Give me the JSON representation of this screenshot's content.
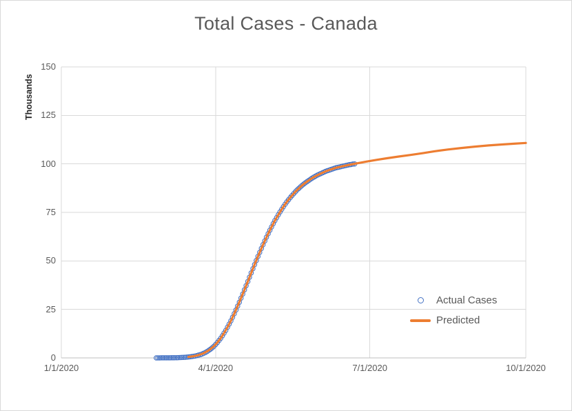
{
  "chart": {
    "title": "Total Cases - Canada",
    "y_axis_title": "Thousands",
    "legend": [
      {
        "label": "Actual Cases",
        "type": "marker",
        "color": "#4472C4"
      },
      {
        "label": "Predicted",
        "type": "line",
        "color": "#ED7D31"
      }
    ]
  },
  "chart_data": {
    "type": "line",
    "title": "Total Cases - Canada",
    "xlabel": "",
    "ylabel": "Thousands",
    "x_unit": "days since 1/1/2020",
    "xlim": [
      0,
      274
    ],
    "ylim": [
      0,
      150
    ],
    "grid": true,
    "legend_position": "inside-right",
    "x_ticks": [
      {
        "day": 0,
        "label": "1/1/2020"
      },
      {
        "day": 91,
        "label": "4/1/2020"
      },
      {
        "day": 182,
        "label": "7/1/2020"
      },
      {
        "day": 274,
        "label": "10/1/2020"
      }
    ],
    "y_ticks": [
      0,
      25,
      50,
      75,
      100,
      125,
      150
    ],
    "series": [
      {
        "name": "Actual Cases",
        "style": "scatter-hollow-circle",
        "color": "#4472C4",
        "points": [
          [
            56,
            0.01
          ],
          [
            57,
            0.01
          ],
          [
            58,
            0.01
          ],
          [
            59,
            0.02
          ],
          [
            60,
            0.02
          ],
          [
            61,
            0.03
          ],
          [
            62,
            0.03
          ],
          [
            63,
            0.04
          ],
          [
            64,
            0.05
          ],
          [
            65,
            0.06
          ],
          [
            66,
            0.08
          ],
          [
            67,
            0.1
          ],
          [
            68,
            0.12
          ],
          [
            69,
            0.15
          ],
          [
            70,
            0.18
          ],
          [
            71,
            0.22
          ],
          [
            72,
            0.27
          ],
          [
            73,
            0.33
          ],
          [
            74,
            0.4
          ],
          [
            75,
            0.48
          ],
          [
            76,
            0.58
          ],
          [
            77,
            0.7
          ],
          [
            78,
            0.85
          ],
          [
            79,
            1.0
          ],
          [
            80,
            1.2
          ],
          [
            81,
            1.45
          ],
          [
            82,
            1.7
          ],
          [
            83,
            2.0
          ],
          [
            84,
            2.4
          ],
          [
            85,
            2.8
          ],
          [
            86,
            3.3
          ],
          [
            87,
            3.9
          ],
          [
            88,
            4.5
          ],
          [
            89,
            5.2
          ],
          [
            90,
            6.0
          ],
          [
            91,
            6.9
          ],
          [
            92,
            7.9
          ],
          [
            93,
            9.0
          ],
          [
            94,
            10.1
          ],
          [
            95,
            11.4
          ],
          [
            96,
            12.8
          ],
          [
            97,
            14.2
          ],
          [
            98,
            15.8
          ],
          [
            99,
            17.4
          ],
          [
            100,
            19.1
          ],
          [
            101,
            20.9
          ],
          [
            102,
            22.8
          ],
          [
            103,
            24.7
          ],
          [
            104,
            26.7
          ],
          [
            105,
            28.7
          ],
          [
            106,
            30.8
          ],
          [
            107,
            32.9
          ],
          [
            108,
            35.1
          ],
          [
            109,
            37.2
          ],
          [
            110,
            39.4
          ],
          [
            111,
            41.6
          ],
          [
            112,
            43.8
          ],
          [
            113,
            46.0
          ],
          [
            114,
            48.1
          ],
          [
            115,
            50.2
          ],
          [
            116,
            52.3
          ],
          [
            117,
            54.4
          ],
          [
            118,
            56.4
          ],
          [
            119,
            58.4
          ],
          [
            120,
            60.3
          ],
          [
            121,
            62.2
          ],
          [
            122,
            64.0
          ],
          [
            123,
            65.8
          ],
          [
            124,
            67.5
          ],
          [
            125,
            69.2
          ],
          [
            126,
            70.8
          ],
          [
            127,
            72.3
          ],
          [
            128,
            73.8
          ],
          [
            129,
            75.2
          ],
          [
            130,
            76.6
          ],
          [
            131,
            77.9
          ],
          [
            132,
            79.2
          ],
          [
            133,
            80.4
          ],
          [
            134,
            81.5
          ],
          [
            135,
            82.6
          ],
          [
            136,
            83.6
          ],
          [
            137,
            84.6
          ],
          [
            138,
            85.6
          ],
          [
            139,
            86.5
          ],
          [
            140,
            87.3
          ],
          [
            141,
            88.1
          ],
          [
            142,
            88.9
          ],
          [
            143,
            89.6
          ],
          [
            144,
            90.3
          ],
          [
            145,
            90.9
          ],
          [
            146,
            91.5
          ],
          [
            147,
            92.1
          ],
          [
            148,
            92.7
          ],
          [
            149,
            93.2
          ],
          [
            150,
            93.7
          ],
          [
            151,
            94.2
          ],
          [
            152,
            94.6
          ],
          [
            153,
            95.0
          ],
          [
            154,
            95.4
          ],
          [
            155,
            95.8
          ],
          [
            156,
            96.2
          ],
          [
            157,
            96.5
          ],
          [
            158,
            96.8
          ],
          [
            159,
            97.1
          ],
          [
            160,
            97.4
          ],
          [
            161,
            97.7
          ],
          [
            162,
            98.0
          ],
          [
            163,
            98.2
          ],
          [
            164,
            98.4
          ],
          [
            165,
            98.6
          ],
          [
            166,
            98.8
          ],
          [
            167,
            99.0
          ],
          [
            168,
            99.2
          ],
          [
            169,
            99.4
          ],
          [
            170,
            99.6
          ],
          [
            171,
            99.7
          ],
          [
            172,
            99.9
          ],
          [
            173,
            100.0
          ]
        ]
      },
      {
        "name": "Predicted",
        "style": "line",
        "color": "#ED7D31",
        "width": 3.2,
        "points": [
          [
            75,
            0.48
          ],
          [
            78,
            0.85
          ],
          [
            81,
            1.45
          ],
          [
            84,
            2.4
          ],
          [
            87,
            3.9
          ],
          [
            90,
            6.0
          ],
          [
            92,
            7.9
          ],
          [
            94,
            10.1
          ],
          [
            96,
            12.8
          ],
          [
            98,
            15.8
          ],
          [
            100,
            19.1
          ],
          [
            102,
            22.8
          ],
          [
            104,
            26.7
          ],
          [
            106,
            30.8
          ],
          [
            108,
            35.1
          ],
          [
            110,
            39.4
          ],
          [
            112,
            43.8
          ],
          [
            114,
            48.1
          ],
          [
            116,
            52.3
          ],
          [
            118,
            56.4
          ],
          [
            120,
            60.3
          ],
          [
            122,
            64.0
          ],
          [
            124,
            67.5
          ],
          [
            126,
            70.8
          ],
          [
            128,
            73.8
          ],
          [
            130,
            76.6
          ],
          [
            132,
            79.2
          ],
          [
            134,
            81.5
          ],
          [
            136,
            83.6
          ],
          [
            138,
            85.6
          ],
          [
            140,
            87.3
          ],
          [
            142,
            88.9
          ],
          [
            144,
            90.3
          ],
          [
            146,
            91.5
          ],
          [
            148,
            92.7
          ],
          [
            150,
            93.7
          ],
          [
            153,
            95.0
          ],
          [
            156,
            96.2
          ],
          [
            159,
            97.1
          ],
          [
            162,
            98.0
          ],
          [
            165,
            98.6
          ],
          [
            168,
            99.2
          ],
          [
            171,
            99.7
          ],
          [
            174,
            100.2
          ],
          [
            177,
            100.7
          ],
          [
            180,
            101.2
          ],
          [
            186,
            102.1
          ],
          [
            192,
            102.9
          ],
          [
            199,
            103.8
          ],
          [
            206,
            104.6
          ],
          [
            213,
            105.5
          ],
          [
            220,
            106.5
          ],
          [
            228,
            107.4
          ],
          [
            236,
            108.2
          ],
          [
            244,
            108.9
          ],
          [
            252,
            109.5
          ],
          [
            260,
            110.0
          ],
          [
            267,
            110.4
          ],
          [
            274,
            110.8
          ]
        ]
      }
    ],
    "colors": {
      "gridline": "#D9D9D9",
      "axis_line": "#BFBFBF",
      "title_text": "#595959",
      "tick_text": "#595959"
    }
  }
}
